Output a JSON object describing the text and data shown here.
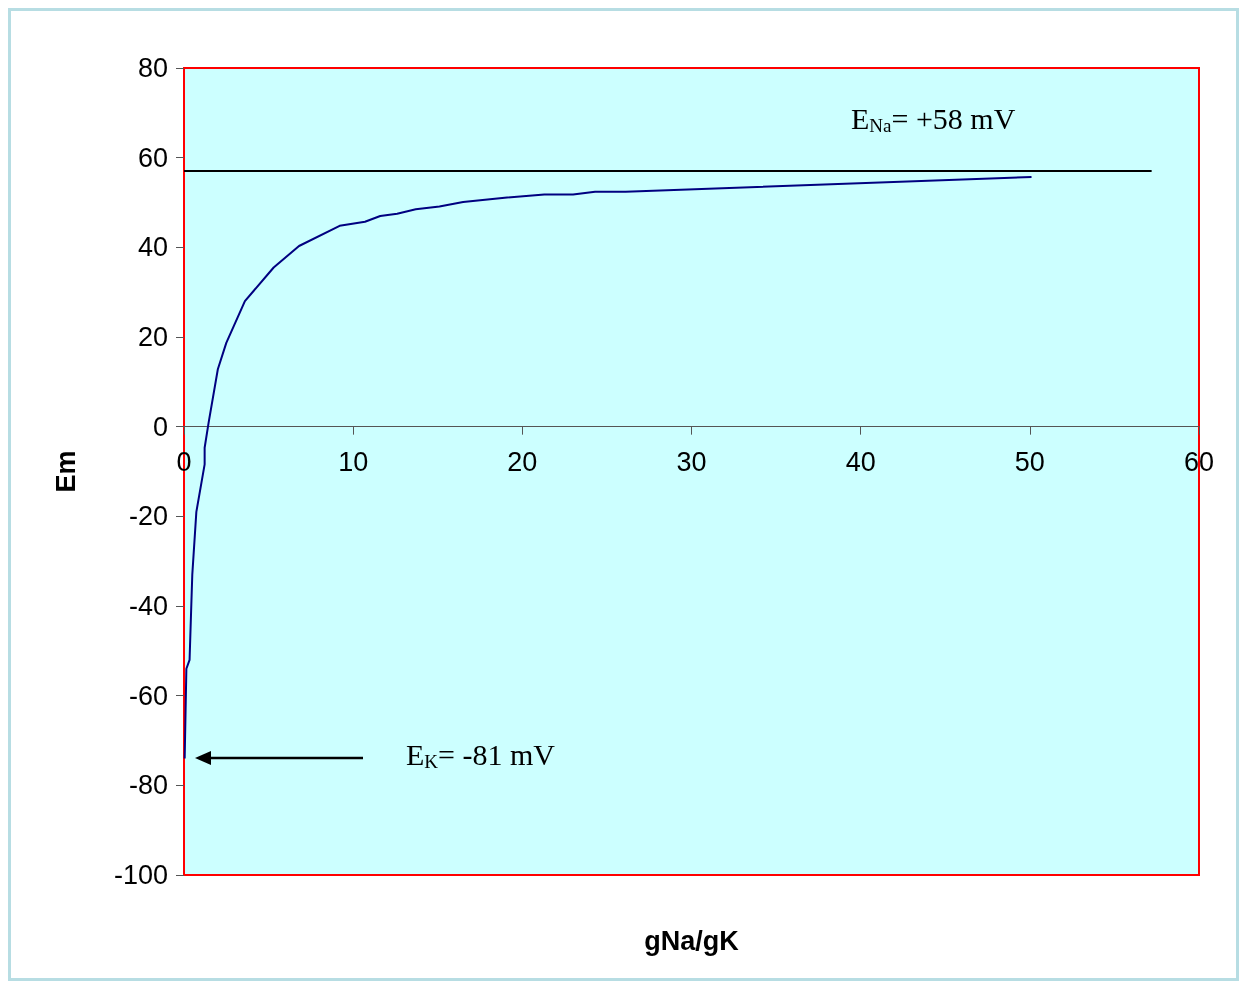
{
  "chart_data": {
    "type": "line",
    "xlabel": "gNa/gK",
    "ylabel": "Em",
    "xlim": [
      0,
      60
    ],
    "ylim": [
      -100,
      80
    ],
    "xticks": [
      0,
      10,
      20,
      30,
      40,
      50,
      60
    ],
    "yticks": [
      -100,
      -80,
      -60,
      -40,
      -20,
      0,
      20,
      40,
      60,
      80
    ],
    "grid": false,
    "marker": "none",
    "series": [
      {
        "color": "#000080",
        "x": [
          0.04,
          0.14,
          0.33,
          0.43,
          0.49,
          0.73,
          1.22,
          1.22,
          1.46,
          2.0,
          2.5,
          3.6,
          5.3,
          6.8,
          9.2,
          10.7,
          11.6,
          12.6,
          13.7,
          15.1,
          16.5,
          19.1,
          21.3,
          23.0,
          24.3,
          26.1,
          50.1
        ],
        "values": [
          -74,
          -54,
          -52,
          -40,
          -33,
          -19,
          -8.4,
          -4.7,
          1,
          12.8,
          18.7,
          28,
          35.5,
          40.3,
          44.8,
          45.7,
          47,
          47.5,
          48.5,
          49.1,
          50.1,
          51.1,
          51.8,
          51.8,
          52.4,
          52.4,
          55.7
        ]
      },
      {
        "color": "#000000",
        "x": [
          0,
          57.2
        ],
        "values": [
          57,
          57
        ]
      }
    ],
    "annotations": [
      "E$_{Na}$= +58 mV",
      "E$_{K}$= -81 mV"
    ]
  }
}
